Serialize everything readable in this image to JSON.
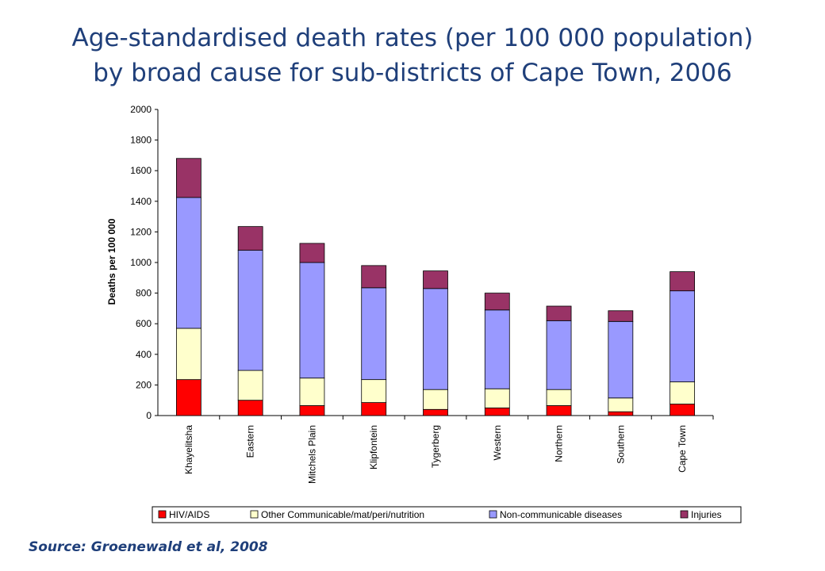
{
  "title_line1": "Age-standardised death rates (per 100 000 population)",
  "title_line2": "by broad cause for sub-districts of Cape Town, 2006",
  "source": "Source: Groenewald et al, 2008",
  "chart_data": {
    "type": "bar",
    "stacked": true,
    "categories": [
      "Khayelitsha",
      "Eastern",
      "Mitchels Plain",
      "Klipfontein",
      "Tygerberg",
      "Western",
      "Northern",
      "Southern",
      "Cape Town"
    ],
    "series": [
      {
        "name": "HIV/AIDS",
        "color": "#ff0000",
        "values": [
          235,
          100,
          65,
          85,
          40,
          50,
          65,
          25,
          75
        ]
      },
      {
        "name": "Other Communicable/mat/peri/nutrition",
        "color": "#ffffcc",
        "values": [
          335,
          195,
          180,
          150,
          130,
          125,
          105,
          90,
          145
        ]
      },
      {
        "name": "Non-communicable diseases",
        "color": "#9999ff",
        "values": [
          855,
          785,
          755,
          600,
          660,
          515,
          450,
          500,
          595
        ]
      },
      {
        "name": "Injuries",
        "color": "#993366",
        "values": [
          255,
          155,
          125,
          145,
          115,
          110,
          95,
          70,
          125
        ]
      }
    ],
    "ylabel": "Deaths per 100 000",
    "xlabel": "",
    "ylim": [
      0,
      2000
    ],
    "yticks": [
      0,
      200,
      400,
      600,
      800,
      1000,
      1200,
      1400,
      1600,
      1800,
      2000
    ],
    "grid": false,
    "legend_position": "bottom"
  }
}
